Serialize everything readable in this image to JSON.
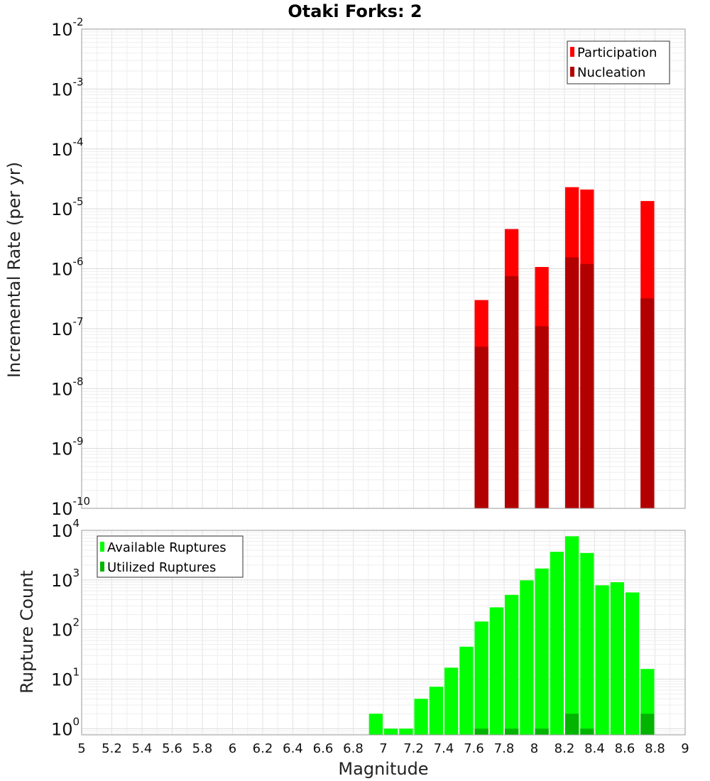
{
  "chart_data": [
    {
      "type": "bar",
      "title": "Otaki Forks: 2",
      "xlabel": "",
      "ylabel": "Incremental Rate (per yr)",
      "yscale": "log",
      "ylim": [
        1e-10,
        0.01
      ],
      "xlim": [
        5,
        9
      ],
      "grid": true,
      "legend_position": "top-right",
      "bin_width": 0.1,
      "ytick_base": "10",
      "ytick_exponents": [
        "-10",
        "-9",
        "-8",
        "-7",
        "-6",
        "-5",
        "-4",
        "-3",
        "-2"
      ],
      "series": [
        {
          "name": "Participation",
          "color": "#ff0000",
          "x": [
            7.65,
            7.85,
            8.05,
            8.25,
            8.35,
            8.75
          ],
          "values": [
            3e-07,
            4.6e-06,
            1.07e-06,
            2.3e-05,
            2.1e-05,
            1.35e-05
          ]
        },
        {
          "name": "Nucleation",
          "color": "#b20000",
          "x": [
            7.65,
            7.85,
            8.05,
            8.25,
            8.35,
            8.75
          ],
          "values": [
            5e-08,
            7.5e-07,
            1.1e-07,
            1.55e-06,
            1.2e-06,
            3.2e-07
          ]
        }
      ]
    },
    {
      "type": "bar",
      "title": "",
      "xlabel": "Magnitude",
      "ylabel": "Rupture Count",
      "yscale": "log",
      "ylim": [
        0.75,
        10000
      ],
      "xlim": [
        5,
        9
      ],
      "grid": true,
      "legend_position": "top-left",
      "bin_width": 0.1,
      "ytick_base": "10",
      "ytick_exponents": [
        "0",
        "1",
        "2",
        "3",
        "4"
      ],
      "xticks": [
        "5",
        "5.2",
        "5.4",
        "5.6",
        "5.8",
        "6",
        "6.2",
        "6.4",
        "6.6",
        "6.8",
        "7",
        "7.2",
        "7.4",
        "7.6",
        "7.8",
        "8",
        "8.2",
        "8.4",
        "8.6",
        "8.8",
        "9"
      ],
      "series": [
        {
          "name": "Available Ruptures",
          "color": "#00ff00",
          "x": [
            6.95,
            7.05,
            7.15,
            7.25,
            7.35,
            7.45,
            7.55,
            7.65,
            7.75,
            7.85,
            7.95,
            8.05,
            8.15,
            8.25,
            8.35,
            8.45,
            8.55,
            8.65,
            8.75
          ],
          "values": [
            2,
            1,
            1,
            4,
            7,
            17,
            45,
            145,
            280,
            500,
            980,
            1700,
            3700,
            7600,
            3500,
            780,
            900,
            560,
            16
          ]
        },
        {
          "name": "Utilized Ruptures",
          "color": "#00b400",
          "x": [
            7.65,
            7.85,
            8.05,
            8.25,
            8.35,
            8.75
          ],
          "values": [
            1,
            1,
            1,
            2,
            1,
            2
          ]
        }
      ]
    }
  ]
}
